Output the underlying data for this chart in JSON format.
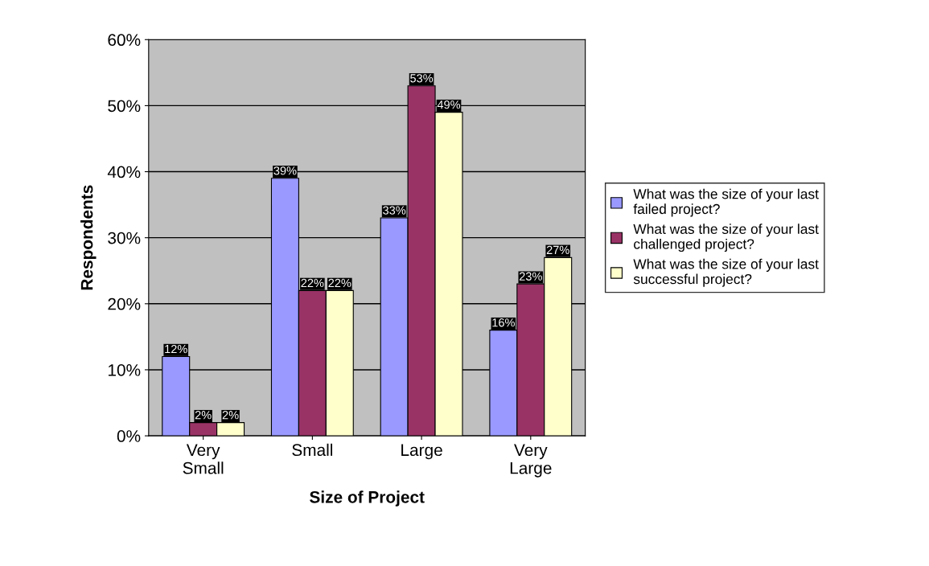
{
  "chart_data": {
    "type": "bar",
    "xlabel": "Size of Project",
    "ylabel": "Respondents",
    "categories": [
      "Very\nSmall",
      "Small",
      "Large",
      "Very\nLarge"
    ],
    "series": [
      {
        "name": "What was the size of your last\nfailed project?",
        "color": "#9999ff",
        "values": [
          12,
          39,
          33,
          16
        ],
        "value_labels": [
          "12%",
          "39%",
          "33%",
          "16%"
        ]
      },
      {
        "name": "What was the size of your last\nchallenged project?",
        "color": "#993366",
        "values": [
          2,
          22,
          53,
          23
        ],
        "value_labels": [
          "2%",
          "22%",
          "53%",
          "23%"
        ]
      },
      {
        "name": "What was the size of your last\nsuccessful project?",
        "color": "#ffffcc",
        "values": [
          2,
          22,
          49,
          27
        ],
        "value_labels": [
          "2%",
          "22%",
          "49%",
          "27%"
        ]
      }
    ],
    "ylim": [
      0,
      60
    ],
    "yticks": [
      {
        "value": 0,
        "label": "0%"
      },
      {
        "value": 10,
        "label": "10%"
      },
      {
        "value": 20,
        "label": "20%"
      },
      {
        "value": 30,
        "label": "30%"
      },
      {
        "value": 40,
        "label": "40%"
      },
      {
        "value": 50,
        "label": "50%"
      },
      {
        "value": 60,
        "label": "60%"
      }
    ],
    "grid": "y",
    "legend": "right"
  }
}
